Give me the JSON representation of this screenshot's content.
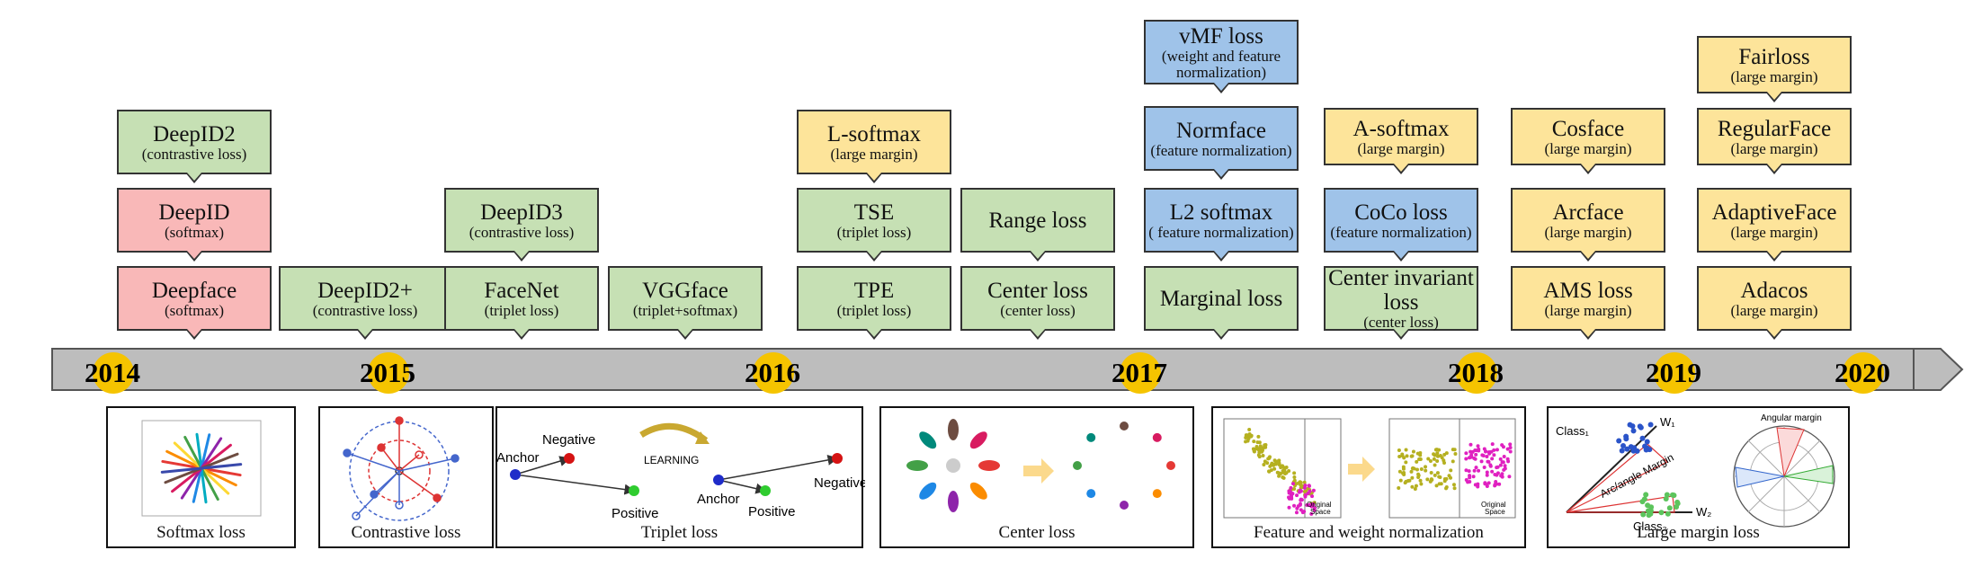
{
  "years": [
    "2014",
    "2015",
    "2016",
    "2017",
    "2018",
    "2019",
    "2020"
  ],
  "boxes": [
    {
      "id": "deepface",
      "title": "Deepface",
      "sub": "(softmax)",
      "color": "red",
      "callout": true
    },
    {
      "id": "deepid",
      "title": "DeepID",
      "sub": "(softmax)",
      "color": "red",
      "callout": true
    },
    {
      "id": "deepid2",
      "title": "DeepID2",
      "sub": "(contrastive loss)",
      "color": "green",
      "callout": true
    },
    {
      "id": "deepid2plus",
      "title": "DeepID2+",
      "sub": "(contrastive loss)",
      "color": "green",
      "callout": true
    },
    {
      "id": "facenet",
      "title": "FaceNet",
      "sub": "(triplet loss)",
      "color": "green",
      "callout": true
    },
    {
      "id": "deepid3",
      "title": "DeepID3",
      "sub": "(contrastive loss)",
      "color": "green",
      "callout": true
    },
    {
      "id": "vggface",
      "title": "VGGface",
      "sub": "(triplet+softmax)",
      "color": "green",
      "callout": true
    },
    {
      "id": "tpe",
      "title": "TPE",
      "sub": "(triplet loss)",
      "color": "green",
      "callout": true
    },
    {
      "id": "tse",
      "title": "TSE",
      "sub": "(triplet loss)",
      "color": "green",
      "callout": true
    },
    {
      "id": "lsoftmax",
      "title": "L-softmax",
      "sub": "(large margin)",
      "color": "yellow",
      "callout": true
    },
    {
      "id": "centerloss",
      "title": "Center loss",
      "sub": "(center loss)",
      "color": "green",
      "callout": true
    },
    {
      "id": "rangeloss",
      "title": "Range loss",
      "sub": "",
      "color": "green",
      "callout": true
    },
    {
      "id": "marginalloss",
      "title": "Marginal loss",
      "sub": "",
      "color": "green",
      "callout": true
    },
    {
      "id": "l2softmax",
      "title": "L2 softmax",
      "sub": "( feature normalization)",
      "color": "blue",
      "callout": true
    },
    {
      "id": "normface",
      "title": "Normface",
      "sub": "(feature normalization)",
      "color": "blue",
      "callout": true
    },
    {
      "id": "vmfloss",
      "title": "vMF loss",
      "sub": "(weight and feature normalization)",
      "color": "blue",
      "callout": true
    },
    {
      "id": "centerinvariant",
      "title": "Center invariant loss",
      "sub": "(center loss)",
      "color": "green",
      "callout": true
    },
    {
      "id": "cocoloss",
      "title": "CoCo loss",
      "sub": "(feature normalization)",
      "color": "blue",
      "callout": true
    },
    {
      "id": "asoftmax",
      "title": "A-softmax",
      "sub": "(large margin)",
      "color": "yellow",
      "callout": true
    },
    {
      "id": "amsloss",
      "title": "AMS loss",
      "sub": "(large margin)",
      "color": "yellow",
      "callout": true
    },
    {
      "id": "arcface",
      "title": "Arcface",
      "sub": "(large margin)",
      "color": "yellow",
      "callout": true
    },
    {
      "id": "cosface",
      "title": "Cosface",
      "sub": "(large margin)",
      "color": "yellow",
      "callout": true
    },
    {
      "id": "adacos",
      "title": "Adacos",
      "sub": "(large margin)",
      "color": "yellow",
      "callout": true
    },
    {
      "id": "adaptiveface",
      "title": "AdaptiveFace",
      "sub": "(large margin)",
      "color": "yellow",
      "callout": true
    },
    {
      "id": "regularface",
      "title": "RegularFace",
      "sub": "(large margin)",
      "color": "yellow",
      "callout": true
    },
    {
      "id": "fairloss",
      "title": "Fairloss",
      "sub": "(large margin)",
      "color": "yellow",
      "callout": true
    }
  ],
  "panels": [
    {
      "id": "softmax",
      "caption": "Softmax loss"
    },
    {
      "id": "contrastive",
      "caption": "Contrastive loss"
    },
    {
      "id": "triplet",
      "caption": "Triplet loss",
      "labels": {
        "negative": "Negative",
        "anchor": "Anchor",
        "positive": "Positive",
        "learning": "LEARNING"
      }
    },
    {
      "id": "center",
      "caption": "Center loss"
    },
    {
      "id": "normalization",
      "caption": "Feature and weight normalization",
      "labels": {
        "original": "Original",
        "space": "Space"
      }
    },
    {
      "id": "largemargin",
      "caption": "Large margin loss",
      "labels": {
        "class1": "Class₁",
        "class2": "Class₂",
        "w1": "W₁",
        "w2": "W₂",
        "arc": "Arc/angle Margin",
        "angular": "Angular margin"
      }
    }
  ],
  "colors": {
    "red": "#f9b8b8",
    "green": "#c6e0b4",
    "yellow": "#fde49a",
    "blue": "#9fc3e9",
    "timeline": "#bdbdbd",
    "year_dot": "#f5c400"
  }
}
